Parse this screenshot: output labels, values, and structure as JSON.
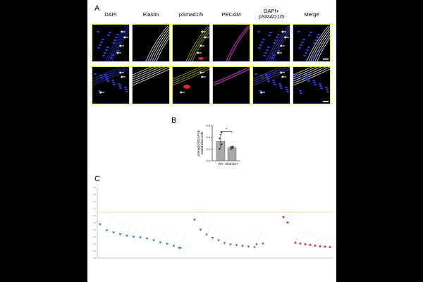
{
  "panelA": {
    "letter": "A",
    "columns": [
      "DAPI",
      "Elastin",
      "pSmad1/5",
      "PECAM",
      "DAPI+\npSMAD1/5",
      "Merge"
    ],
    "rows": [
      "WT",
      "Shank3-/-"
    ]
  },
  "panelB": {
    "letter": "B",
    "significance": "*",
    "chart_data": {
      "type": "bar",
      "categories": [
        "WT",
        "Shank3-/-"
      ],
      "values": [
        0.33,
        0.22
      ],
      "errors": [
        0.12,
        0.03
      ],
      "points": [
        [
          0.2,
          0.28,
          0.38,
          0.48
        ],
        [
          0.2,
          0.22,
          0.23,
          0.24
        ]
      ],
      "ylabel": "pSmad1/5/DAPI in\nendothelial cells",
      "ylim": [
        0,
        0.6
      ],
      "yticks": [
        "0.0",
        "0.2",
        "0.4",
        "0.6"
      ],
      "bar_color": "#a8a8a8"
    }
  },
  "panelC": {
    "letter": "C",
    "chart_data": {
      "type": "scatter",
      "ylim": [
        0,
        2.0
      ],
      "yticks": [
        "0.0",
        "0.2",
        "0.4",
        "0.6",
        "0.8",
        "1.0",
        "1.2",
        "1.4",
        "1.6",
        "1.8",
        "2.0"
      ],
      "threshold": 1.3,
      "series": [
        {
          "color": "#2f7fc1",
          "marker": "down-triangle",
          "values": [
            0.95,
            0.78,
            0.72,
            0.67,
            0.63,
            0.6,
            0.58,
            0.55,
            0.5,
            0.44,
            0.4,
            0.34,
            0.28
          ]
        },
        {
          "color": "#2b8f6d",
          "marker": "up-triangle",
          "values": [
            0.3
          ]
        },
        {
          "color": "#6d6d6d",
          "marker": "down-triangle",
          "values": [
            1.08,
            0.8,
            0.66,
            0.57,
            0.5,
            0.42,
            0.38,
            0.36,
            0.34,
            0.32,
            0.3
          ]
        },
        {
          "color": "#6d6d6d",
          "marker": "up-triangle",
          "values": [
            0.4,
            0.42
          ]
        },
        {
          "color": "#c0242a",
          "marker": "down-triangle",
          "values": [
            1.15,
            1.0
          ]
        },
        {
          "color": "#c0242a",
          "marker": "up-triangle",
          "values": [
            0.44,
            0.42,
            0.4,
            0.38,
            0.36,
            0.34,
            0.33,
            0.32
          ]
        }
      ]
    }
  }
}
